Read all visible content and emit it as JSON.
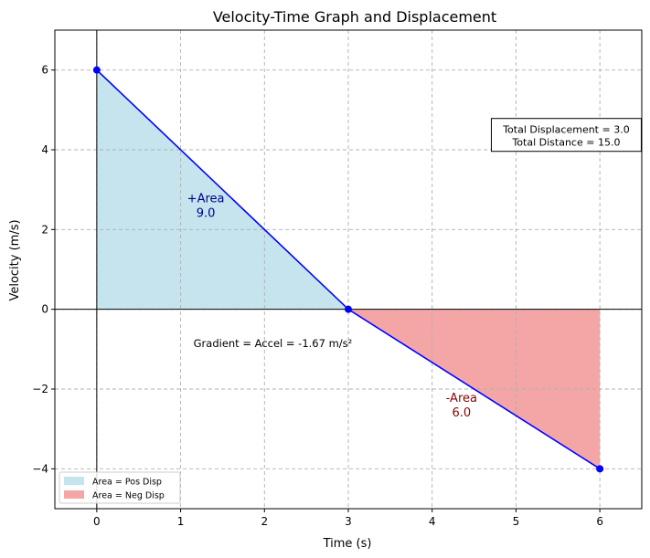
{
  "chart_data": {
    "type": "line",
    "title": "Velocity-Time Graph and Displacement",
    "xlabel": "Time (s)",
    "ylabel": "Velocity (m/s)",
    "xlim": [
      -0.5,
      6.5
    ],
    "ylim": [
      -5,
      7
    ],
    "x_ticks": [
      0,
      1,
      2,
      3,
      4,
      5,
      6
    ],
    "y_ticks": [
      -4,
      -2,
      0,
      2,
      4,
      6
    ],
    "x_tick_labels": [
      "0",
      "1",
      "2",
      "3",
      "4",
      "5",
      "6"
    ],
    "y_tick_labels": [
      "−4",
      "−2",
      "0",
      "2",
      "4",
      "6"
    ],
    "grid": true,
    "series": [
      {
        "x": [
          0,
          3,
          6
        ],
        "y": [
          6,
          0,
          -4
        ],
        "color": "#0000ff"
      }
    ],
    "areas": [
      {
        "label": "Area = Pos Disp",
        "x": [
          0,
          3
        ],
        "y": [
          6,
          0
        ],
        "color": "#add8e6"
      },
      {
        "label": "Area = Neg Disp",
        "x": [
          3,
          6
        ],
        "y": [
          0,
          -4
        ],
        "color": "#f08080"
      }
    ],
    "annotations": [
      {
        "lines": [
          "+Area",
          "9.0"
        ],
        "x": 1.3,
        "y": 2.6,
        "color": "#00008b"
      },
      {
        "lines": [
          "-Area",
          "6.0"
        ],
        "x": 4.35,
        "y": -2.4,
        "color": "#8b0000"
      },
      {
        "lines": [
          "Gradient = Accel = -1.67 m/s²"
        ],
        "x": 2.1,
        "y": -0.85,
        "color": "#000000"
      },
      {
        "lines": [
          "Total Displacement = 3.0",
          "Total Distance = 15.0"
        ],
        "x": 5.6,
        "y": 4.35,
        "color": "#000000",
        "boxed": true
      }
    ],
    "legend_position": "lower-left"
  }
}
